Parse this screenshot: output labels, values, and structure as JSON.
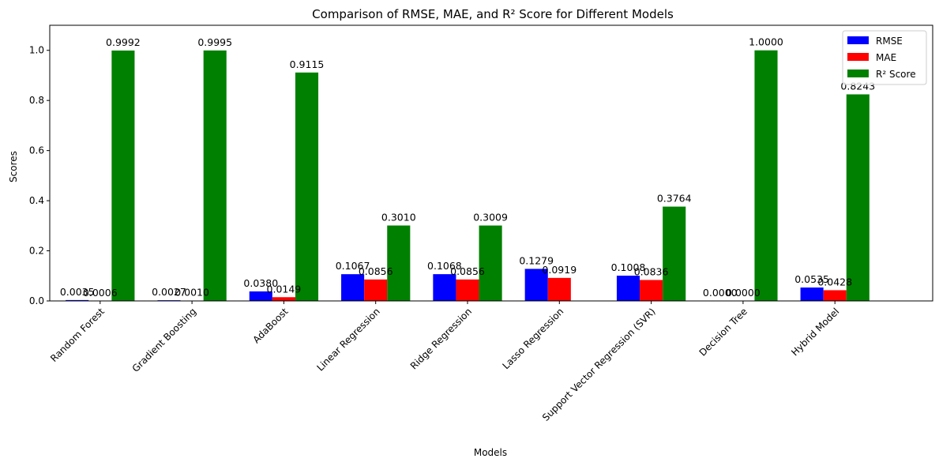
{
  "chart_data": {
    "type": "bar",
    "title": "Comparison of RMSE, MAE, and R² Score for Different Models",
    "xlabel": "Models",
    "ylabel": "Scores",
    "ylim": [
      0,
      1.1
    ],
    "yticks": [
      0.0,
      0.2,
      0.4,
      0.6,
      0.8,
      1.0
    ],
    "ytick_labels": [
      "0.0",
      "0.2",
      "0.4",
      "0.6",
      "0.8",
      "1.0"
    ],
    "legend_position": "top-right",
    "grid": false,
    "categories": [
      "Random Forest",
      "Gradient Boosting",
      "AdaBoost",
      "Linear Regression",
      "Ridge Regression",
      "Lasso Regression",
      "Support Vector Regression (SVR)",
      "Decision Tree",
      "Hybrid Model"
    ],
    "series": [
      {
        "name": "RMSE",
        "color": "#0000ff",
        "values": [
          0.0035,
          0.0027,
          0.038,
          0.1067,
          0.1068,
          0.1279,
          0.1008,
          0.0,
          0.0535
        ],
        "labels": [
          "0.0035",
          "0.0027",
          "0.0380",
          "0.1067",
          "0.1068",
          "0.1279",
          "0.1008",
          "0.0000",
          "0.0535"
        ]
      },
      {
        "name": "MAE",
        "color": "#ff0000",
        "values": [
          0.0006,
          0.001,
          0.0149,
          0.0856,
          0.0856,
          0.0919,
          0.0836,
          0.0,
          0.0428
        ],
        "labels": [
          "0.0006",
          "0.0010",
          "0.0149",
          "0.0856",
          "0.0856",
          "0.0919",
          "0.0836",
          "0.0000",
          "0.0428"
        ]
      },
      {
        "name": "R² Score",
        "color": "#008000",
        "values": [
          0.9992,
          0.9995,
          0.9115,
          0.301,
          0.3009,
          null,
          0.3764,
          1.0,
          0.8243
        ],
        "labels": [
          "0.9992",
          "0.9995",
          "0.9115",
          "0.3010",
          "0.3009",
          null,
          "0.3764",
          "1.0000",
          "0.8243"
        ]
      }
    ]
  }
}
